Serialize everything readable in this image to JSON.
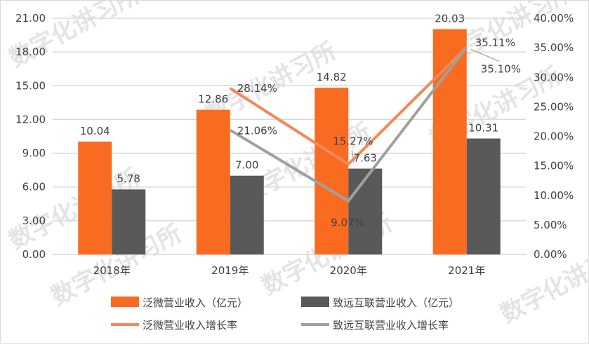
{
  "chart_data": {
    "type": "bar+line",
    "categories": [
      "2018年",
      "2019年",
      "2020年",
      "2021年"
    ],
    "bar_series": [
      {
        "name": "泛微营业收入（亿元）",
        "values": [
          10.04,
          12.86,
          14.82,
          20.03
        ],
        "labels": [
          "10.04",
          "12.86",
          "14.82",
          "20.03"
        ],
        "color": "#fa6b22"
      },
      {
        "name": "致远互联营业收入（亿元）",
        "values": [
          5.78,
          7.0,
          7.63,
          10.31
        ],
        "labels": [
          "5.78",
          "7.00",
          "7.63",
          "10.31"
        ],
        "color": "#595959"
      }
    ],
    "line_series": [
      {
        "name": "泛微营业收入增长率",
        "values": [
          null,
          28.14,
          15.27,
          35.11
        ],
        "labels": [
          "",
          "28.14%",
          "15.27%",
          "35.11%"
        ],
        "color": "#f2895a"
      },
      {
        "name": "致远互联营业收入增长率",
        "values": [
          null,
          21.06,
          9.07,
          35.1
        ],
        "labels": [
          "",
          "21.06%",
          "9.07%",
          "35.10%"
        ],
        "color": "#a0a0a0"
      }
    ],
    "y_left": {
      "range": [
        0,
        21
      ],
      "ticks": [
        "0.00",
        "3.00",
        "6.00",
        "9.00",
        "12.00",
        "15.00",
        "18.00",
        "21.00"
      ]
    },
    "y_right": {
      "range": [
        0,
        40
      ],
      "unit": "%",
      "ticks": [
        "0.00%",
        "5.00%",
        "10.00%",
        "15.00%",
        "20.00%",
        "25.00%",
        "30.00%",
        "35.00%",
        "40.00%"
      ]
    },
    "grid": true,
    "legend_position": "bottom"
  },
  "watermark": "数字化讲习所"
}
